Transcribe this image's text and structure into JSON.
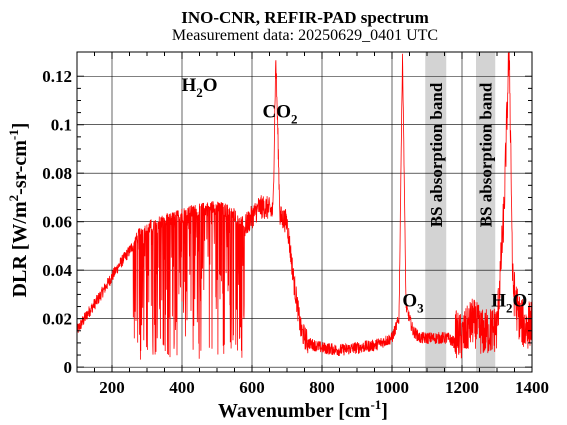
{
  "chart_data": {
    "type": "line",
    "title": "INO-CNR, REFIR-PAD spectrum",
    "subtitle": "Measurement data: 20250629_0401 UTC",
    "xlabel": {
      "main": "Wavenumber [cm",
      "sup": "-1",
      "tail": "]"
    },
    "ylabel": {
      "p1": "DLR [W/m",
      "sup1": "2",
      "p2": "-sr-cm",
      "sup2": "-1",
      "p3": "]"
    },
    "xlim": [
      100,
      1400
    ],
    "ylim": [
      -0.002,
      0.13
    ],
    "x_ticks": [
      200,
      400,
      600,
      800,
      1000,
      1200,
      1400
    ],
    "x_tick_labels": [
      "200",
      "400",
      "600",
      "800",
      "1000",
      "1200",
      "1400"
    ],
    "y_ticks": [
      0,
      0.02,
      0.04,
      0.06,
      0.08,
      0.1,
      0.12
    ],
    "y_tick_labels": [
      "0",
      "0.02",
      "0.04",
      "0.06",
      "0.08",
      "0.1",
      "0.12"
    ],
    "grid": true,
    "series": [
      {
        "color": "#ff0000",
        "x": [
          100,
          130,
          160,
          190,
          220,
          250,
          280,
          310,
          340,
          370,
          400,
          430,
          460,
          490,
          520,
          550,
          580,
          600,
          620,
          640,
          660,
          668,
          680,
          700,
          720,
          740,
          760,
          780,
          800,
          850,
          900,
          950,
          1000,
          1020,
          1030,
          1040,
          1060,
          1080,
          1100,
          1120,
          1140,
          1160,
          1180,
          1200,
          1230,
          1260,
          1300,
          1320,
          1335,
          1345,
          1360,
          1380,
          1400
        ],
        "y": [
          0.015,
          0.022,
          0.028,
          0.035,
          0.042,
          0.048,
          0.055,
          0.058,
          0.06,
          0.061,
          0.063,
          0.064,
          0.065,
          0.066,
          0.065,
          0.063,
          0.058,
          0.062,
          0.066,
          0.066,
          0.064,
          0.128,
          0.062,
          0.06,
          0.035,
          0.015,
          0.01,
          0.009,
          0.008,
          0.007,
          0.008,
          0.009,
          0.012,
          0.02,
          0.13,
          0.025,
          0.015,
          0.012,
          0.012,
          0.012,
          0.012,
          0.012,
          0.01,
          0.008,
          0.015,
          0.01,
          0.012,
          0.06,
          0.13,
          0.03,
          0.018,
          0.012,
          0.015
        ]
      }
    ],
    "shaded_bands": [
      {
        "label": "BS absorption band",
        "x0": 1095,
        "x1": 1155
      },
      {
        "label": "BS absorption band",
        "x0": 1240,
        "x1": 1295
      }
    ],
    "annotations": [
      {
        "id": "h2o-left",
        "base": "H",
        "sub": "2",
        "tail": "O",
        "x": 450,
        "y": 0.114
      },
      {
        "id": "co2",
        "base": "CO",
        "sub": "2",
        "tail": "",
        "x": 680,
        "y": 0.103
      },
      {
        "id": "o3",
        "base": "O",
        "sub": "3",
        "tail": "",
        "x": 1060,
        "y": 0.025
      },
      {
        "id": "h2o-right",
        "base": "H",
        "sub": "2",
        "tail": "O",
        "x": 1335,
        "y": 0.025
      }
    ],
    "colors": {
      "series": "#ff0000",
      "band": "#d3d3d3",
      "grid": "#000000"
    }
  }
}
